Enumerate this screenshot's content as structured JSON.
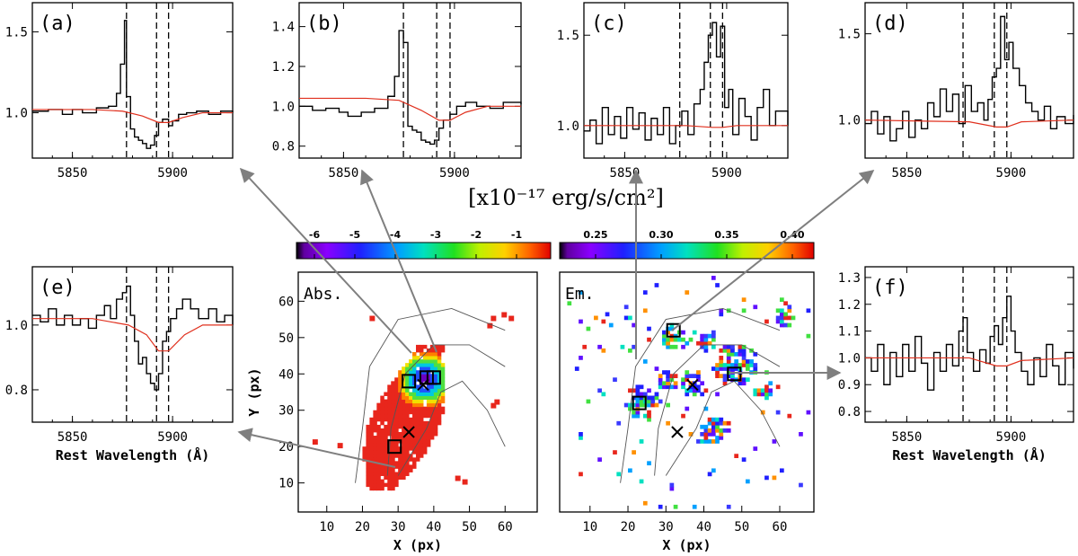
{
  "chart_data": [
    {
      "type": "line",
      "id": "a",
      "panel_label": "(a)",
      "xlim": [
        5830,
        5930
      ],
      "ylim": [
        0.72,
        1.68
      ],
      "xticks": [
        5850,
        5900
      ],
      "yticks": [
        1.0,
        1.5
      ],
      "ytick_labels": [
        "1.0",
        "1.5"
      ],
      "xlabel": "",
      "vlines": [
        5877,
        5892,
        5898
      ],
      "model": [
        [
          5830,
          1.02
        ],
        [
          5860,
          1.02
        ],
        [
          5875,
          1.01
        ],
        [
          5885,
          0.98
        ],
        [
          5893,
          0.94
        ],
        [
          5898,
          0.94
        ],
        [
          5905,
          0.97
        ],
        [
          5915,
          1.0
        ],
        [
          5930,
          1.0
        ]
      ],
      "steps": [
        [
          5830,
          1.01
        ],
        [
          5838,
          1.02
        ],
        [
          5845,
          0.99
        ],
        [
          5850,
          1.02
        ],
        [
          5855,
          1.0
        ],
        [
          5862,
          1.03
        ],
        [
          5868,
          1.04
        ],
        [
          5872,
          1.12
        ],
        [
          5874,
          1.3
        ],
        [
          5876,
          1.57
        ],
        [
          5877,
          1.1
        ],
        [
          5879,
          0.9
        ],
        [
          5881,
          0.85
        ],
        [
          5883,
          0.83
        ],
        [
          5885,
          0.81
        ],
        [
          5887,
          0.78
        ],
        [
          5889,
          0.8
        ],
        [
          5891,
          0.86
        ],
        [
          5893,
          0.94
        ],
        [
          5895,
          0.96
        ],
        [
          5898,
          0.92
        ],
        [
          5900,
          0.95
        ],
        [
          5903,
          0.99
        ],
        [
          5907,
          1.0
        ],
        [
          5912,
          1.01
        ],
        [
          5918,
          0.99
        ],
        [
          5924,
          1.01
        ],
        [
          5930,
          1.0
        ]
      ]
    },
    {
      "type": "line",
      "id": "b",
      "panel_label": "(b)",
      "xlim": [
        5830,
        5930
      ],
      "ylim": [
        0.74,
        1.52
      ],
      "xticks": [
        5850,
        5900
      ],
      "yticks": [
        0.8,
        1.0,
        1.2,
        1.4
      ],
      "ytick_labels": [
        "0.8",
        "1.0",
        "1.2",
        "1.4"
      ],
      "xlabel": "",
      "vlines": [
        5877,
        5892,
        5898
      ],
      "model": [
        [
          5830,
          1.04
        ],
        [
          5860,
          1.04
        ],
        [
          5875,
          1.03
        ],
        [
          5885,
          0.98
        ],
        [
          5893,
          0.93
        ],
        [
          5898,
          0.93
        ],
        [
          5905,
          0.97
        ],
        [
          5915,
          1.0
        ],
        [
          5930,
          1.0
        ]
      ],
      "steps": [
        [
          5830,
          1.0
        ],
        [
          5836,
          0.98
        ],
        [
          5842,
          0.99
        ],
        [
          5848,
          0.97
        ],
        [
          5852,
          0.95
        ],
        [
          5858,
          0.97
        ],
        [
          5864,
          0.99
        ],
        [
          5870,
          1.05
        ],
        [
          5873,
          1.15
        ],
        [
          5875,
          1.38
        ],
        [
          5877,
          1.32
        ],
        [
          5879,
          0.9
        ],
        [
          5881,
          0.88
        ],
        [
          5883,
          0.87
        ],
        [
          5885,
          0.83
        ],
        [
          5887,
          0.82
        ],
        [
          5889,
          0.81
        ],
        [
          5891,
          0.83
        ],
        [
          5893,
          0.89
        ],
        [
          5895,
          0.93
        ],
        [
          5898,
          0.96
        ],
        [
          5901,
          1.0
        ],
        [
          5905,
          1.02
        ],
        [
          5910,
          1.0
        ],
        [
          5916,
          0.99
        ],
        [
          5922,
          1.02
        ],
        [
          5930,
          1.01
        ]
      ]
    },
    {
      "type": "line",
      "id": "c",
      "panel_label": "(c)",
      "xlim": [
        5830,
        5930
      ],
      "ylim": [
        0.82,
        1.68
      ],
      "xticks": [
        5850,
        5900
      ],
      "yticks": [
        1.0,
        1.5
      ],
      "ytick_labels": [
        "1.0",
        "1.5"
      ],
      "xlabel": "",
      "vlines": [
        5877,
        5892,
        5898
      ],
      "model": [
        [
          5830,
          1.0
        ],
        [
          5880,
          1.0
        ],
        [
          5893,
          0.99
        ],
        [
          5898,
          0.99
        ],
        [
          5905,
          1.0
        ],
        [
          5930,
          1.0
        ]
      ],
      "steps": [
        [
          5830,
          0.97
        ],
        [
          5833,
          1.03
        ],
        [
          5836,
          0.9
        ],
        [
          5839,
          1.1
        ],
        [
          5842,
          0.95
        ],
        [
          5845,
          1.05
        ],
        [
          5848,
          0.93
        ],
        [
          5851,
          1.1
        ],
        [
          5854,
          0.98
        ],
        [
          5857,
          1.07
        ],
        [
          5860,
          0.92
        ],
        [
          5863,
          1.04
        ],
        [
          5866,
          0.95
        ],
        [
          5869,
          1.1
        ],
        [
          5872,
          0.9
        ],
        [
          5875,
          1.0
        ],
        [
          5878,
          1.08
        ],
        [
          5881,
          0.95
        ],
        [
          5884,
          1.12
        ],
        [
          5887,
          1.2
        ],
        [
          5889,
          1.35
        ],
        [
          5891,
          1.5
        ],
        [
          5893,
          1.57
        ],
        [
          5895,
          1.38
        ],
        [
          5897,
          1.55
        ],
        [
          5899,
          1.1
        ],
        [
          5901,
          1.2
        ],
        [
          5903,
          0.95
        ],
        [
          5906,
          1.15
        ],
        [
          5909,
          1.05
        ],
        [
          5912,
          0.92
        ],
        [
          5915,
          1.1
        ],
        [
          5918,
          1.2
        ],
        [
          5921,
          1.0
        ],
        [
          5924,
          1.08
        ],
        [
          5930,
          1.0
        ]
      ]
    },
    {
      "type": "line",
      "id": "d",
      "panel_label": "(d)",
      "xlim": [
        5830,
        5930
      ],
      "ylim": [
        0.78,
        1.68
      ],
      "xticks": [
        5850,
        5900
      ],
      "yticks": [
        1.0,
        1.5
      ],
      "ytick_labels": [
        "1.0",
        "1.5"
      ],
      "xlabel": "",
      "vlines": [
        5877,
        5892,
        5898
      ],
      "model": [
        [
          5830,
          1.0
        ],
        [
          5880,
          0.99
        ],
        [
          5893,
          0.96
        ],
        [
          5898,
          0.96
        ],
        [
          5905,
          0.99
        ],
        [
          5930,
          1.0
        ]
      ],
      "steps": [
        [
          5830,
          0.98
        ],
        [
          5833,
          1.05
        ],
        [
          5836,
          0.92
        ],
        [
          5839,
          1.02
        ],
        [
          5842,
          0.88
        ],
        [
          5845,
          0.95
        ],
        [
          5848,
          1.05
        ],
        [
          5851,
          0.9
        ],
        [
          5854,
          1.0
        ],
        [
          5857,
          0.95
        ],
        [
          5860,
          1.1
        ],
        [
          5863,
          1.02
        ],
        [
          5866,
          1.18
        ],
        [
          5869,
          1.05
        ],
        [
          5872,
          1.15
        ],
        [
          5875,
          0.98
        ],
        [
          5878,
          1.2
        ],
        [
          5881,
          1.05
        ],
        [
          5884,
          1.1
        ],
        [
          5887,
          1.0
        ],
        [
          5889,
          1.12
        ],
        [
          5891,
          1.25
        ],
        [
          5893,
          1.3
        ],
        [
          5895,
          1.6
        ],
        [
          5897,
          1.35
        ],
        [
          5899,
          1.45
        ],
        [
          5901,
          1.3
        ],
        [
          5904,
          1.2
        ],
        [
          5907,
          1.1
        ],
        [
          5910,
          1.05
        ],
        [
          5913,
          1.0
        ],
        [
          5916,
          1.08
        ],
        [
          5919,
          0.95
        ],
        [
          5922,
          1.02
        ],
        [
          5926,
          0.98
        ],
        [
          5930,
          1.03
        ]
      ]
    },
    {
      "type": "line",
      "id": "e",
      "panel_label": "(e)",
      "xlim": [
        5830,
        5930
      ],
      "ylim": [
        0.7,
        1.18
      ],
      "xticks": [
        5850,
        5900
      ],
      "yticks": [
        0.8,
        1.0
      ],
      "ytick_labels": [
        "0.8",
        "1.0"
      ],
      "xlabel": "Rest Wavelength (Å)",
      "vlines": [
        5877,
        5892,
        5898
      ],
      "model": [
        [
          5830,
          1.02
        ],
        [
          5860,
          1.02
        ],
        [
          5878,
          1.0
        ],
        [
          5887,
          0.97
        ],
        [
          5893,
          0.92
        ],
        [
          5898,
          0.92
        ],
        [
          5906,
          0.97
        ],
        [
          5915,
          1.0
        ],
        [
          5930,
          1.0
        ]
      ],
      "steps": [
        [
          5830,
          1.03
        ],
        [
          5834,
          1.01
        ],
        [
          5838,
          1.05
        ],
        [
          5842,
          1.0
        ],
        [
          5846,
          1.03
        ],
        [
          5850,
          1.0
        ],
        [
          5854,
          1.02
        ],
        [
          5858,
          0.99
        ],
        [
          5862,
          1.03
        ],
        [
          5866,
          1.06
        ],
        [
          5869,
          1.02
        ],
        [
          5872,
          1.08
        ],
        [
          5875,
          1.1
        ],
        [
          5877,
          1.12
        ],
        [
          5879,
          1.03
        ],
        [
          5881,
          0.95
        ],
        [
          5883,
          0.88
        ],
        [
          5885,
          0.9
        ],
        [
          5887,
          0.85
        ],
        [
          5889,
          0.82
        ],
        [
          5891,
          0.8
        ],
        [
          5893,
          0.85
        ],
        [
          5895,
          0.95
        ],
        [
          5897,
          0.98
        ],
        [
          5899,
          1.02
        ],
        [
          5902,
          1.05
        ],
        [
          5905,
          1.08
        ],
        [
          5909,
          1.05
        ],
        [
          5913,
          1.02
        ],
        [
          5918,
          1.05
        ],
        [
          5922,
          1.01
        ],
        [
          5926,
          1.03
        ],
        [
          5930,
          1.0
        ]
      ]
    },
    {
      "type": "line",
      "id": "f",
      "panel_label": "(f)",
      "xlim": [
        5830,
        5930
      ],
      "ylim": [
        0.76,
        1.34
      ],
      "xticks": [
        5850,
        5900
      ],
      "yticks": [
        0.8,
        0.9,
        1.0,
        1.1,
        1.2,
        1.3
      ],
      "ytick_labels": [
        "0.8",
        "0.9",
        "1.0",
        "1.1",
        "1.2",
        "1.3"
      ],
      "xlabel": "Rest Wavelength (Å)",
      "vlines": [
        5877,
        5892,
        5898
      ],
      "model": [
        [
          5830,
          1.0
        ],
        [
          5880,
          1.0
        ],
        [
          5893,
          0.97
        ],
        [
          5898,
          0.97
        ],
        [
          5905,
          0.99
        ],
        [
          5930,
          1.0
        ]
      ],
      "steps": [
        [
          5830,
          1.0
        ],
        [
          5833,
          0.95
        ],
        [
          5836,
          1.05
        ],
        [
          5839,
          0.9
        ],
        [
          5842,
          1.02
        ],
        [
          5845,
          0.93
        ],
        [
          5848,
          1.05
        ],
        [
          5851,
          0.95
        ],
        [
          5854,
          1.08
        ],
        [
          5857,
          0.98
        ],
        [
          5860,
          0.88
        ],
        [
          5863,
          1.02
        ],
        [
          5866,
          0.95
        ],
        [
          5869,
          1.05
        ],
        [
          5872,
          0.97
        ],
        [
          5875,
          1.1
        ],
        [
          5877,
          1.15
        ],
        [
          5879,
          1.02
        ],
        [
          5882,
          0.95
        ],
        [
          5885,
          1.03
        ],
        [
          5888,
          0.98
        ],
        [
          5890,
          1.08
        ],
        [
          5892,
          1.12
        ],
        [
          5894,
          1.05
        ],
        [
          5896,
          1.15
        ],
        [
          5898,
          1.23
        ],
        [
          5900,
          1.1
        ],
        [
          5902,
          1.02
        ],
        [
          5905,
          0.95
        ],
        [
          5908,
          0.9
        ],
        [
          5911,
          1.0
        ],
        [
          5914,
          0.93
        ],
        [
          5917,
          1.05
        ],
        [
          5920,
          0.97
        ],
        [
          5923,
          0.9
        ],
        [
          5926,
          1.02
        ],
        [
          5930,
          0.96
        ]
      ]
    },
    {
      "type": "heatmap",
      "id": "abs_map",
      "label": "Abs.",
      "xlim": [
        2,
        69
      ],
      "ylim": [
        2,
        68
      ],
      "xticks": [
        10,
        20,
        30,
        40,
        50,
        60
      ],
      "yticks": [
        10,
        20,
        30,
        40,
        50,
        60
      ],
      "xlabel": "X (px)",
      "ylabel": "Y (px)",
      "colorbar_ticks": [
        "-6",
        "-5",
        "-4",
        "-3",
        "-2",
        "-1"
      ],
      "boxes": [
        [
          29,
          20
        ],
        [
          33,
          38
        ],
        [
          40,
          39
        ],
        [
          38,
          39
        ]
      ],
      "crosses": [
        [
          37,
          37
        ],
        [
          33,
          24
        ]
      ]
    },
    {
      "type": "heatmap",
      "id": "em_map",
      "label": "Em.",
      "xlim": [
        2,
        69
      ],
      "ylim": [
        2,
        68
      ],
      "xticks": [
        10,
        20,
        30,
        40,
        50,
        60
      ],
      "yticks": [],
      "xlabel": "X (px)",
      "ylabel": "",
      "colorbar_ticks": [
        "0.25",
        "0.30",
        "0.35",
        "0.40"
      ],
      "boxes": [
        [
          32,
          52
        ],
        [
          23,
          32
        ],
        [
          48,
          40
        ]
      ],
      "crosses": [
        [
          37,
          37
        ],
        [
          33,
          24
        ]
      ]
    }
  ],
  "unit_label": "[x10⁻¹⁷ erg/s/cm²]",
  "colors": {
    "spectrum": "#000000",
    "model": "#e0301e",
    "arrow": "#7f7f7f"
  }
}
